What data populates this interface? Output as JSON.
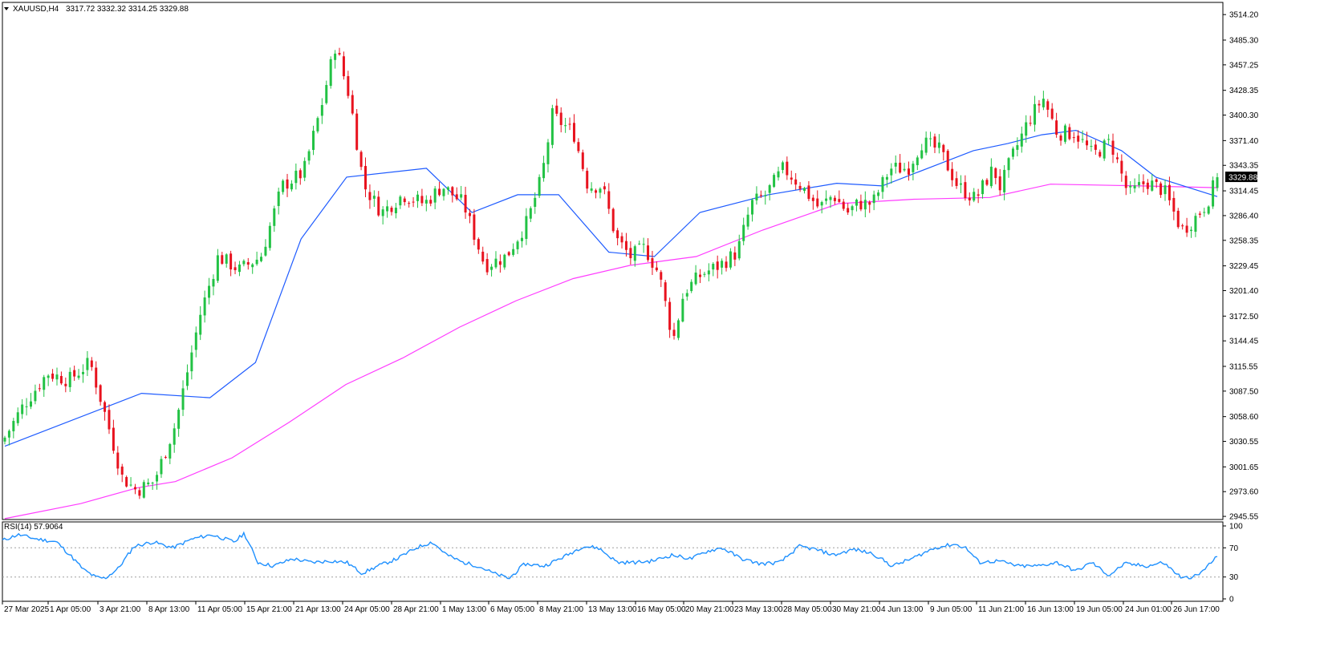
{
  "chart_data": {
    "type": "candlestick",
    "symbol": "XAUUSD,H4",
    "header": {
      "symbol_label": "XAUUSD,H4",
      "ohlc": "3317.72 3332.32 3314.25 3329.88"
    },
    "price_axis": {
      "ticks": [
        "3514.20",
        "3485.30",
        "3457.25",
        "3428.35",
        "3400.30",
        "3371.40",
        "3343.35",
        "3314.45",
        "3286.40",
        "3258.35",
        "3229.45",
        "3201.40",
        "3172.50",
        "3144.45",
        "3115.55",
        "3087.50",
        "3058.60",
        "3030.55",
        "3001.65",
        "2973.60",
        "2945.55"
      ],
      "range": [
        2942,
        3528
      ],
      "last_price": "3329.88"
    },
    "time_axis": {
      "labels": [
        "27 Mar 2025",
        "1 Apr 05:00",
        "3 Apr 21:00",
        "8 Apr 13:00",
        "11 Apr 05:00",
        "15 Apr 21:00",
        "21 Apr 13:00",
        "24 Apr 05:00",
        "28 Apr 21:00",
        "1 May 13:00",
        "6 May 05:00",
        "8 May 21:00",
        "13 May 13:00",
        "16 May 05:00",
        "20 May 21:00",
        "23 May 13:00",
        "28 May 05:00",
        "30 May 21:00",
        "4 Jun 13:00",
        "9 Jun 05:00",
        "11 Jun 21:00",
        "16 Jun 13:00",
        "19 Jun 05:00",
        "24 Jun 01:00",
        "26 Jun 17:00"
      ]
    },
    "candle_count": 280,
    "close_anchors": [
      [
        0,
        3035
      ],
      [
        5,
        3070
      ],
      [
        12,
        3108
      ],
      [
        18,
        3100
      ],
      [
        24,
        3120
      ],
      [
        29,
        3050
      ],
      [
        33,
        2990
      ],
      [
        37,
        2975
      ],
      [
        42,
        2985
      ],
      [
        48,
        3050
      ],
      [
        55,
        3175
      ],
      [
        60,
        3240
      ],
      [
        66,
        3225
      ],
      [
        72,
        3240
      ],
      [
        78,
        3320
      ],
      [
        84,
        3335
      ],
      [
        89,
        3410
      ],
      [
        93,
        3480
      ],
      [
        97,
        3420
      ],
      [
        101,
        3320
      ],
      [
        106,
        3290
      ],
      [
        112,
        3310
      ],
      [
        118,
        3300
      ],
      [
        123,
        3320
      ],
      [
        129,
        3300
      ],
      [
        135,
        3230
      ],
      [
        141,
        3240
      ],
      [
        147,
        3280
      ],
      [
        151,
        3330
      ],
      [
        154,
        3400
      ],
      [
        157,
        3390
      ],
      [
        160,
        3380
      ],
      [
        164,
        3320
      ],
      [
        168,
        3320
      ],
      [
        172,
        3260
      ],
      [
        176,
        3240
      ],
      [
        180,
        3250
      ],
      [
        184,
        3220
      ],
      [
        188,
        3145
      ],
      [
        191,
        3200
      ],
      [
        196,
        3220
      ],
      [
        201,
        3230
      ],
      [
        206,
        3245
      ],
      [
        210,
        3300
      ],
      [
        214,
        3310
      ],
      [
        219,
        3340
      ],
      [
        224,
        3320
      ],
      [
        229,
        3295
      ],
      [
        233,
        3310
      ],
      [
        237,
        3290
      ],
      [
        240,
        3300
      ],
      [
        244,
        3300
      ],
      [
        249,
        3340
      ],
      [
        254,
        3340
      ],
      [
        258,
        3370
      ],
      [
        263,
        3360
      ],
      [
        268,
        3320
      ],
      [
        273,
        3305
      ],
      [
        278,
        3340
      ],
      [
        280,
        3318
      ],
      [
        283,
        3350
      ],
      [
        288,
        3395
      ],
      [
        292,
        3420
      ],
      [
        296,
        3380
      ],
      [
        301,
        3380
      ],
      [
        306,
        3355
      ],
      [
        311,
        3370
      ],
      [
        316,
        3310
      ],
      [
        321,
        3325
      ],
      [
        326,
        3315
      ],
      [
        331,
        3270
      ],
      [
        334,
        3280
      ],
      [
        338,
        3300
      ],
      [
        341,
        3329.88
      ]
    ],
    "ma_blue": {
      "color": "#1e5bff",
      "values": [
        [
          0,
          3025
        ],
        [
          60,
          3085
        ],
        [
          90,
          3080
        ],
        [
          110,
          3120
        ],
        [
          130,
          3260
        ],
        [
          150,
          3330
        ],
        [
          185,
          3340
        ],
        [
          205,
          3290
        ],
        [
          225,
          3310
        ],
        [
          243,
          3310
        ],
        [
          265,
          3245
        ],
        [
          285,
          3240
        ],
        [
          305,
          3290
        ],
        [
          335,
          3310
        ],
        [
          365,
          3323
        ],
        [
          385,
          3320
        ],
        [
          410,
          3345
        ],
        [
          425,
          3360
        ],
        [
          440,
          3368
        ],
        [
          455,
          3378
        ],
        [
          470,
          3383
        ],
        [
          490,
          3360
        ],
        [
          505,
          3330
        ],
        [
          532,
          3308
        ]
      ]
    },
    "ma_magenta": {
      "color": "#ff3cff",
      "values": [
        [
          0,
          2943
        ],
        [
          40,
          2960
        ],
        [
          70,
          2978
        ],
        [
          90,
          2985
        ],
        [
          120,
          3012
        ],
        [
          150,
          3052
        ],
        [
          180,
          3095
        ],
        [
          210,
          3125
        ],
        [
          240,
          3160
        ],
        [
          270,
          3190
        ],
        [
          300,
          3215
        ],
        [
          330,
          3230
        ],
        [
          365,
          3240
        ],
        [
          400,
          3270
        ],
        [
          440,
          3300
        ],
        [
          480,
          3305
        ],
        [
          520,
          3307
        ],
        [
          552,
          3322
        ],
        [
          600,
          3320
        ],
        [
          640,
          3318
        ]
      ]
    },
    "colors": {
      "bull": "#22c244",
      "bear": "#e8121e",
      "rsi_line": "#1e90ff",
      "grid_dots": "#a0a0a0"
    },
    "rsi": {
      "label": "RSI(14) 57.9064",
      "levels": [
        "100",
        "70",
        "30",
        "0"
      ],
      "anchors": [
        [
          0,
          80
        ],
        [
          8,
          88
        ],
        [
          18,
          82
        ],
        [
          28,
          78
        ],
        [
          35,
          60
        ],
        [
          42,
          40
        ],
        [
          48,
          30
        ],
        [
          53,
          28
        ],
        [
          60,
          42
        ],
        [
          68,
          72
        ],
        [
          78,
          78
        ],
        [
          88,
          70
        ],
        [
          98,
          82
        ],
        [
          108,
          88
        ],
        [
          120,
          78
        ],
        [
          125,
          90
        ],
        [
          132,
          50
        ],
        [
          140,
          45
        ],
        [
          150,
          55
        ],
        [
          160,
          50
        ],
        [
          170,
          52
        ],
        [
          178,
          50
        ],
        [
          186,
          35
        ],
        [
          194,
          45
        ],
        [
          204,
          55
        ],
        [
          214,
          70
        ],
        [
          222,
          78
        ],
        [
          230,
          60
        ],
        [
          238,
          50
        ],
        [
          246,
          45
        ],
        [
          254,
          35
        ],
        [
          262,
          28
        ],
        [
          270,
          48
        ],
        [
          280,
          45
        ],
        [
          292,
          60
        ],
        [
          300,
          72
        ],
        [
          308,
          70
        ],
        [
          318,
          50
        ],
        [
          328,
          50
        ],
        [
          336,
          52
        ],
        [
          346,
          60
        ],
        [
          356,
          55
        ],
        [
          364,
          65
        ],
        [
          372,
          70
        ],
        [
          382,
          55
        ],
        [
          392,
          48
        ],
        [
          402,
          50
        ],
        [
          412,
          72
        ],
        [
          420,
          68
        ],
        [
          430,
          60
        ],
        [
          440,
          68
        ],
        [
          450,
          62
        ],
        [
          460,
          45
        ],
        [
          470,
          55
        ],
        [
          482,
          70
        ],
        [
          492,
          75
        ],
        [
          498,
          70
        ],
        [
          505,
          50
        ],
        [
          515,
          52
        ],
        [
          525,
          45
        ],
        [
          535,
          45
        ],
        [
          545,
          50
        ],
        [
          555,
          38
        ],
        [
          563,
          50
        ],
        [
          572,
          32
        ],
        [
          580,
          48
        ],
        [
          592,
          45
        ],
        [
          600,
          50
        ],
        [
          610,
          28
        ],
        [
          618,
          32
        ],
        [
          628,
          57.9
        ]
      ]
    }
  }
}
